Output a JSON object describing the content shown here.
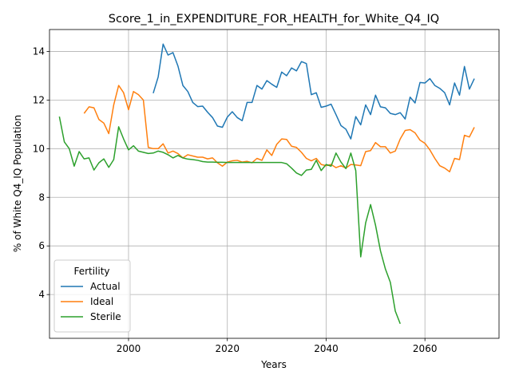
{
  "chart_data": {
    "type": "line",
    "title": "Score_1_in_EXPENDITURE_FOR_HEALTH_for_White_Q4_IQ",
    "xlabel": "Years",
    "ylabel": "% of White Q4_IQ Population",
    "xlim": [
      1984,
      2075
    ],
    "ylim": [
      2.2,
      14.9
    ],
    "xticks": [
      2000,
      2020,
      2040,
      2060
    ],
    "yticks": [
      4,
      6,
      8,
      10,
      12,
      14
    ],
    "grid": true,
    "legend": {
      "title": "Fertility",
      "position": "lower-left"
    },
    "series": [
      {
        "name": "Actual",
        "color": "#1f77b4",
        "points": [
          [
            2005,
            12.28
          ],
          [
            2006,
            12.95
          ],
          [
            2007,
            14.3
          ],
          [
            2008,
            13.85
          ],
          [
            2009,
            13.95
          ],
          [
            2010,
            13.4
          ],
          [
            2011,
            12.6
          ],
          [
            2012,
            12.35
          ],
          [
            2013,
            11.9
          ],
          [
            2014,
            11.73
          ],
          [
            2015,
            11.75
          ],
          [
            2016,
            11.5
          ],
          [
            2017,
            11.28
          ],
          [
            2018,
            10.93
          ],
          [
            2019,
            10.88
          ],
          [
            2020,
            11.3
          ],
          [
            2021,
            11.52
          ],
          [
            2022,
            11.28
          ],
          [
            2023,
            11.15
          ],
          [
            2024,
            11.9
          ],
          [
            2025,
            11.9
          ],
          [
            2026,
            12.6
          ],
          [
            2027,
            12.45
          ],
          [
            2028,
            12.8
          ],
          [
            2029,
            12.65
          ],
          [
            2030,
            12.52
          ],
          [
            2031,
            13.15
          ],
          [
            2032,
            13.0
          ],
          [
            2033,
            13.32
          ],
          [
            2034,
            13.2
          ],
          [
            2035,
            13.58
          ],
          [
            2036,
            13.5
          ],
          [
            2037,
            12.22
          ],
          [
            2038,
            12.3
          ],
          [
            2039,
            11.7
          ],
          [
            2040,
            11.75
          ],
          [
            2041,
            11.83
          ],
          [
            2042,
            11.4
          ],
          [
            2043,
            10.95
          ],
          [
            2044,
            10.8
          ],
          [
            2045,
            10.4
          ],
          [
            2046,
            11.32
          ],
          [
            2047,
            10.98
          ],
          [
            2048,
            11.8
          ],
          [
            2049,
            11.4
          ],
          [
            2050,
            12.2
          ],
          [
            2051,
            11.72
          ],
          [
            2052,
            11.68
          ],
          [
            2053,
            11.45
          ],
          [
            2054,
            11.4
          ],
          [
            2055,
            11.48
          ],
          [
            2056,
            11.22
          ],
          [
            2057,
            12.12
          ],
          [
            2058,
            11.88
          ],
          [
            2059,
            12.72
          ],
          [
            2060,
            12.7
          ],
          [
            2061,
            12.88
          ],
          [
            2062,
            12.6
          ],
          [
            2063,
            12.48
          ],
          [
            2064,
            12.3
          ],
          [
            2065,
            11.8
          ],
          [
            2066,
            12.7
          ],
          [
            2067,
            12.2
          ],
          [
            2068,
            13.38
          ],
          [
            2069,
            12.45
          ],
          [
            2070,
            12.88
          ]
        ]
      },
      {
        "name": "Ideal",
        "color": "#ff7f0e",
        "points": [
          [
            1991,
            11.45
          ],
          [
            1992,
            11.72
          ],
          [
            1993,
            11.68
          ],
          [
            1994,
            11.2
          ],
          [
            1995,
            11.05
          ],
          [
            1996,
            10.62
          ],
          [
            1997,
            11.8
          ],
          [
            1998,
            12.6
          ],
          [
            1999,
            12.3
          ],
          [
            2000,
            11.6
          ],
          [
            2001,
            12.35
          ],
          [
            2002,
            12.22
          ],
          [
            2003,
            12.0
          ],
          [
            2004,
            10.05
          ],
          [
            2005,
            10.0
          ],
          [
            2006,
            10.0
          ],
          [
            2007,
            10.2
          ],
          [
            2008,
            9.82
          ],
          [
            2009,
            9.9
          ],
          [
            2010,
            9.8
          ],
          [
            2011,
            9.62
          ],
          [
            2012,
            9.75
          ],
          [
            2013,
            9.7
          ],
          [
            2014,
            9.65
          ],
          [
            2015,
            9.65
          ],
          [
            2016,
            9.58
          ],
          [
            2017,
            9.62
          ],
          [
            2018,
            9.42
          ],
          [
            2019,
            9.28
          ],
          [
            2020,
            9.45
          ],
          [
            2021,
            9.5
          ],
          [
            2022,
            9.52
          ],
          [
            2023,
            9.45
          ],
          [
            2024,
            9.48
          ],
          [
            2025,
            9.42
          ],
          [
            2026,
            9.6
          ],
          [
            2027,
            9.52
          ],
          [
            2028,
            9.95
          ],
          [
            2029,
            9.72
          ],
          [
            2030,
            10.18
          ],
          [
            2031,
            10.4
          ],
          [
            2032,
            10.38
          ],
          [
            2033,
            10.1
          ],
          [
            2034,
            10.05
          ],
          [
            2035,
            9.85
          ],
          [
            2036,
            9.6
          ],
          [
            2037,
            9.5
          ],
          [
            2038,
            9.6
          ],
          [
            2039,
            9.35
          ],
          [
            2040,
            9.3
          ],
          [
            2041,
            9.35
          ],
          [
            2042,
            9.22
          ],
          [
            2043,
            9.3
          ],
          [
            2044,
            9.2
          ],
          [
            2045,
            9.35
          ],
          [
            2046,
            9.33
          ],
          [
            2047,
            9.3
          ],
          [
            2048,
            9.88
          ],
          [
            2049,
            9.92
          ],
          [
            2050,
            10.25
          ],
          [
            2051,
            10.08
          ],
          [
            2052,
            10.08
          ],
          [
            2053,
            9.82
          ],
          [
            2054,
            9.9
          ],
          [
            2055,
            10.4
          ],
          [
            2056,
            10.75
          ],
          [
            2057,
            10.78
          ],
          [
            2058,
            10.65
          ],
          [
            2059,
            10.35
          ],
          [
            2060,
            10.22
          ],
          [
            2061,
            9.95
          ],
          [
            2062,
            9.6
          ],
          [
            2063,
            9.3
          ],
          [
            2064,
            9.2
          ],
          [
            2065,
            9.05
          ],
          [
            2066,
            9.6
          ],
          [
            2067,
            9.55
          ],
          [
            2068,
            10.55
          ],
          [
            2069,
            10.48
          ],
          [
            2070,
            10.88
          ]
        ]
      },
      {
        "name": "Sterile",
        "color": "#2ca02c",
        "points": [
          [
            1986,
            11.32
          ],
          [
            1987,
            10.28
          ],
          [
            1988,
            10.0
          ],
          [
            1989,
            9.28
          ],
          [
            1990,
            9.88
          ],
          [
            1991,
            9.58
          ],
          [
            1992,
            9.62
          ],
          [
            1993,
            9.12
          ],
          [
            1994,
            9.42
          ],
          [
            1995,
            9.58
          ],
          [
            1996,
            9.23
          ],
          [
            1997,
            9.55
          ],
          [
            1998,
            10.9
          ],
          [
            1999,
            10.4
          ],
          [
            2000,
            9.95
          ],
          [
            2001,
            10.12
          ],
          [
            2002,
            9.9
          ],
          [
            2003,
            9.85
          ],
          [
            2004,
            9.8
          ],
          [
            2005,
            9.82
          ],
          [
            2006,
            9.9
          ],
          [
            2007,
            9.85
          ],
          [
            2008,
            9.75
          ],
          [
            2009,
            9.62
          ],
          [
            2010,
            9.72
          ],
          [
            2011,
            9.62
          ],
          [
            2012,
            9.57
          ],
          [
            2013,
            9.55
          ],
          [
            2014,
            9.52
          ],
          [
            2015,
            9.47
          ],
          [
            2016,
            9.45
          ],
          [
            2017,
            9.45
          ],
          [
            2018,
            9.44
          ],
          [
            2019,
            9.44
          ],
          [
            2020,
            9.43
          ],
          [
            2021,
            9.43
          ],
          [
            2022,
            9.43
          ],
          [
            2023,
            9.43
          ],
          [
            2024,
            9.43
          ],
          [
            2025,
            9.43
          ],
          [
            2026,
            9.43
          ],
          [
            2027,
            9.43
          ],
          [
            2028,
            9.43
          ],
          [
            2029,
            9.43
          ],
          [
            2030,
            9.43
          ],
          [
            2031,
            9.43
          ],
          [
            2032,
            9.38
          ],
          [
            2033,
            9.2
          ],
          [
            2034,
            9.0
          ],
          [
            2035,
            8.9
          ],
          [
            2036,
            9.12
          ],
          [
            2037,
            9.15
          ],
          [
            2038,
            9.52
          ],
          [
            2039,
            9.1
          ],
          [
            2040,
            9.35
          ],
          [
            2041,
            9.28
          ],
          [
            2042,
            9.82
          ],
          [
            2043,
            9.45
          ],
          [
            2044,
            9.18
          ],
          [
            2045,
            9.82
          ],
          [
            2046,
            9.1
          ],
          [
            2047,
            5.55
          ],
          [
            2048,
            6.95
          ],
          [
            2049,
            7.7
          ],
          [
            2050,
            6.85
          ],
          [
            2051,
            5.8
          ],
          [
            2052,
            5.05
          ],
          [
            2053,
            4.5
          ],
          [
            2054,
            3.32
          ],
          [
            2055,
            2.8
          ]
        ]
      }
    ]
  }
}
